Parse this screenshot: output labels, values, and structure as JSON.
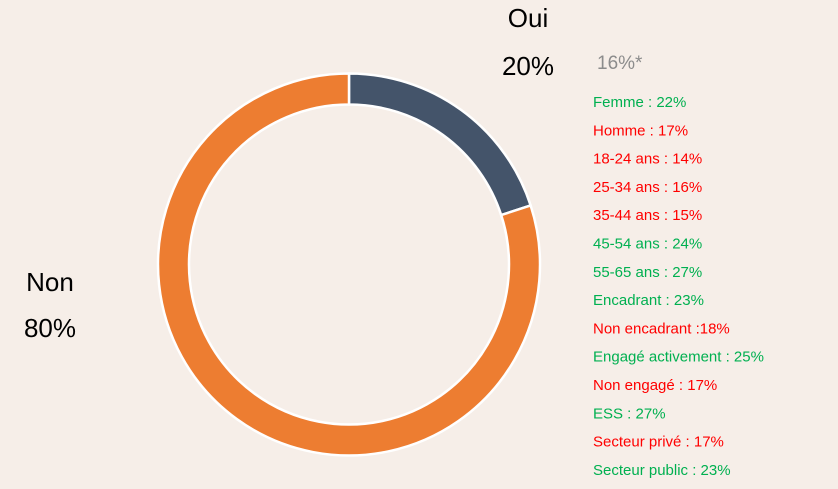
{
  "chart_data": {
    "type": "donut",
    "categories": [
      "Oui",
      "Non"
    ],
    "values": [
      20,
      80
    ],
    "value_labels": [
      "20%",
      "80%"
    ],
    "colors": [
      "#44546a",
      "#ed7d31"
    ],
    "annotation": {
      "text": "16%*",
      "color": "#8c8c8c"
    },
    "breakdown": [
      {
        "text": "Femme : 22%",
        "color": "#00b050"
      },
      {
        "text": "Homme : 17%",
        "color": "#ff0000"
      },
      {
        "text": "18-24 ans : 14%",
        "color": "#ff0000"
      },
      {
        "text": "25-34 ans : 16%",
        "color": "#ff0000"
      },
      {
        "text": "35-44 ans : 15%",
        "color": "#ff0000"
      },
      {
        "text": "45-54 ans : 24%",
        "color": "#00b050"
      },
      {
        "text": "55-65 ans : 27%",
        "color": "#00b050"
      },
      {
        "text": "Encadrant : 23%",
        "color": "#00b050"
      },
      {
        "text": "Non encadrant :18%",
        "color": "#ff0000"
      },
      {
        "text": "Engagé activement : 25%",
        "color": "#00b050"
      },
      {
        "text": "Non engagé : 17%",
        "color": "#ff0000"
      },
      {
        "text": "ESS : 27%",
        "color": "#00b050"
      },
      {
        "text": "Secteur privé : 17%",
        "color": "#ff0000"
      },
      {
        "text": "Secteur public : 23%",
        "color": "#00b050"
      }
    ]
  }
}
